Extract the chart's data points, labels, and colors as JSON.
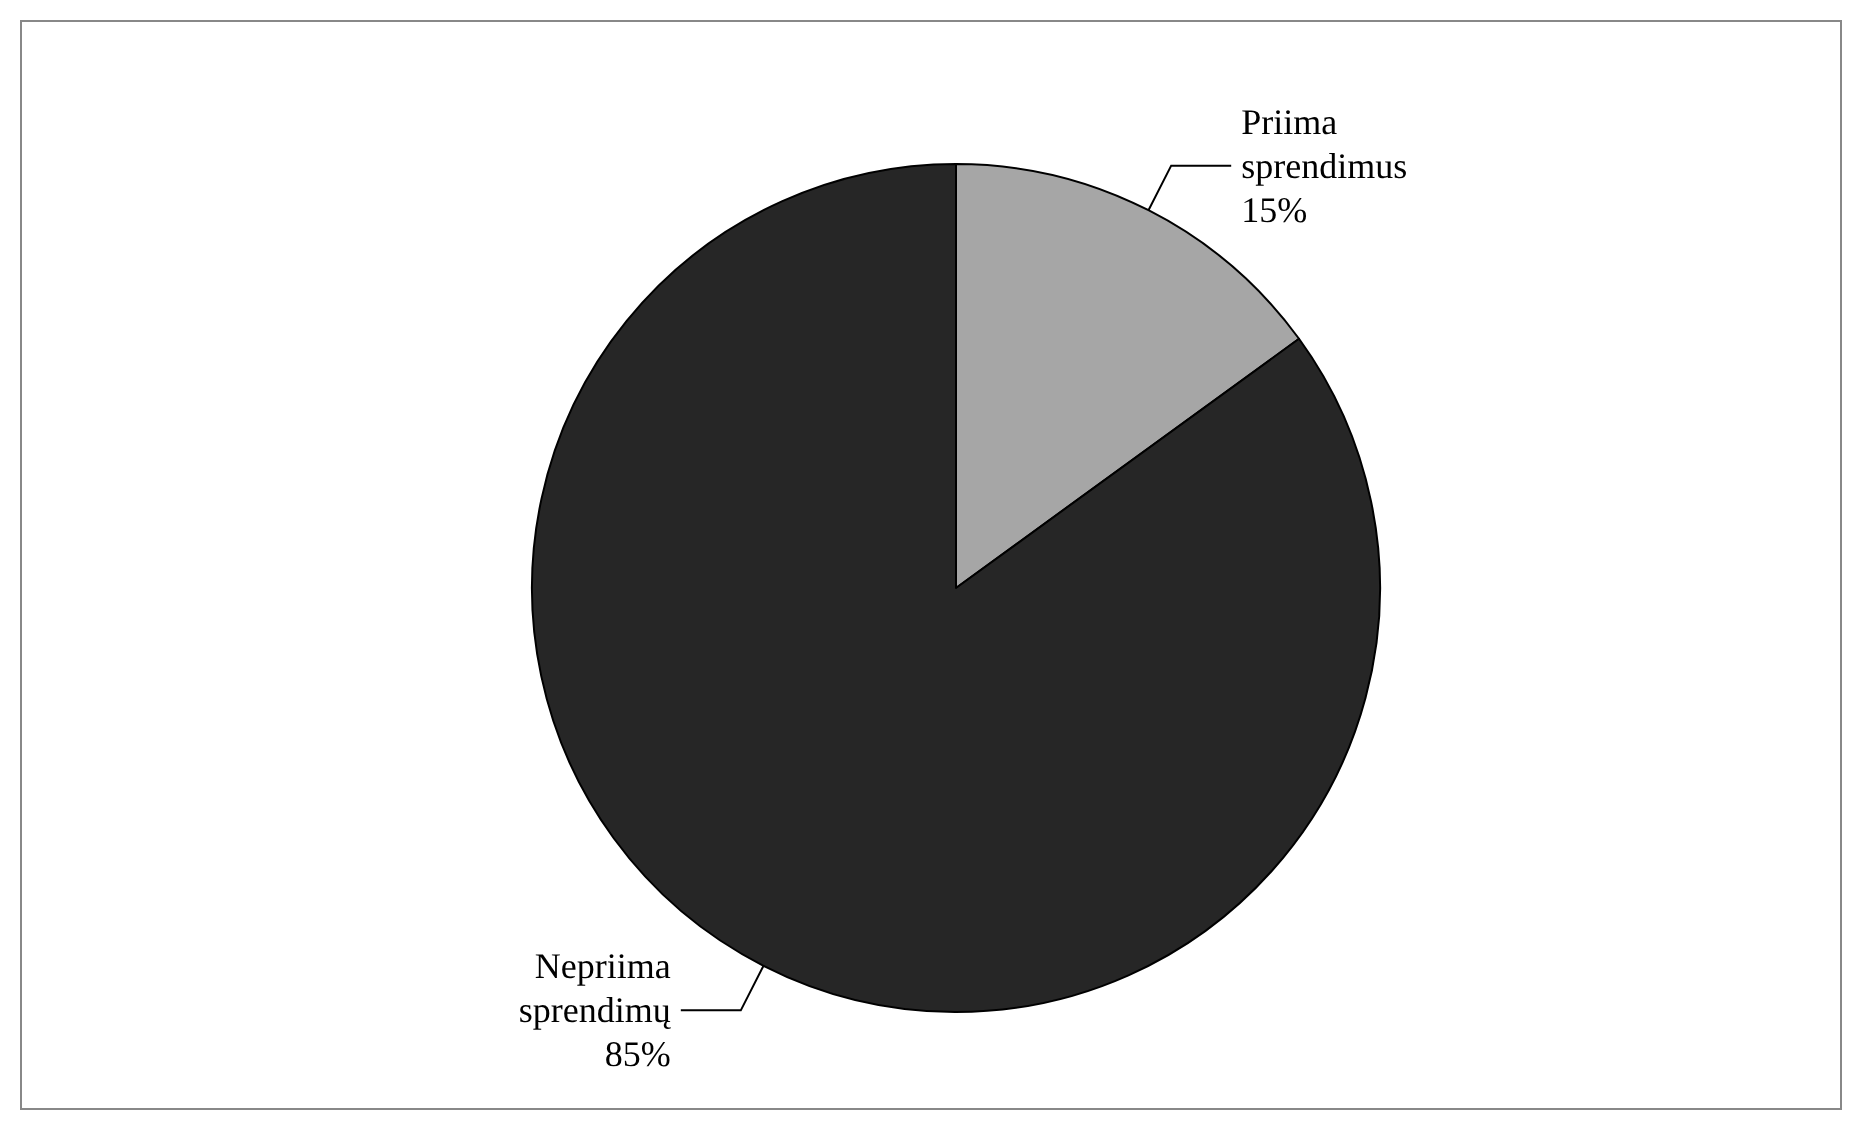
{
  "chart_data": {
    "type": "pie",
    "categories": [
      "Priima sprendimus",
      "Nepriima sprendimų"
    ],
    "values": [
      15,
      85
    ],
    "colors": [
      "#a6a6a6",
      "#262626"
    ],
    "value_labels": [
      "15%",
      "85%"
    ],
    "legend": false
  }
}
